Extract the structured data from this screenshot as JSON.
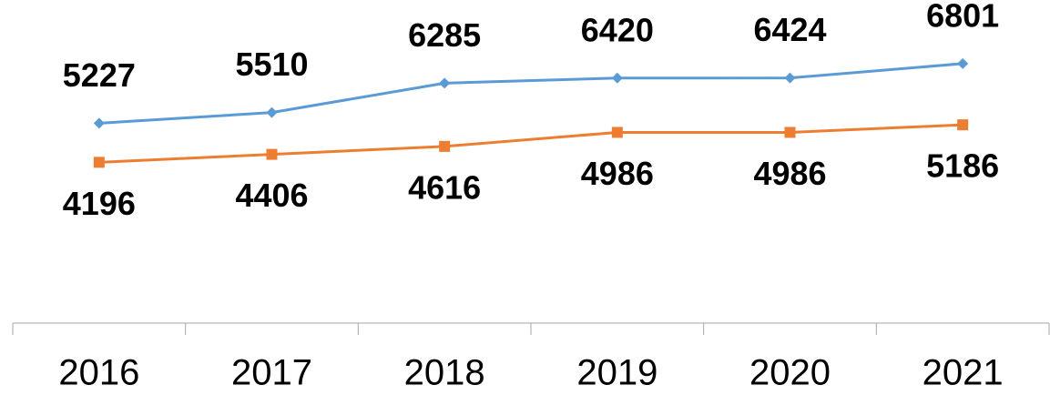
{
  "chart_data": {
    "type": "line",
    "categories": [
      "2016",
      "2017",
      "2018",
      "2019",
      "2020",
      "2021"
    ],
    "series": [
      {
        "color": "#5b9bd5",
        "marker": "diamond",
        "values": [
          5227,
          5510,
          6285,
          6420,
          6424,
          6801
        ]
      },
      {
        "color": "#ed7d31",
        "marker": "square",
        "values": [
          4196,
          4406,
          4616,
          4986,
          4986,
          5186
        ]
      }
    ],
    "ylim": [
      0,
      8000
    ]
  }
}
